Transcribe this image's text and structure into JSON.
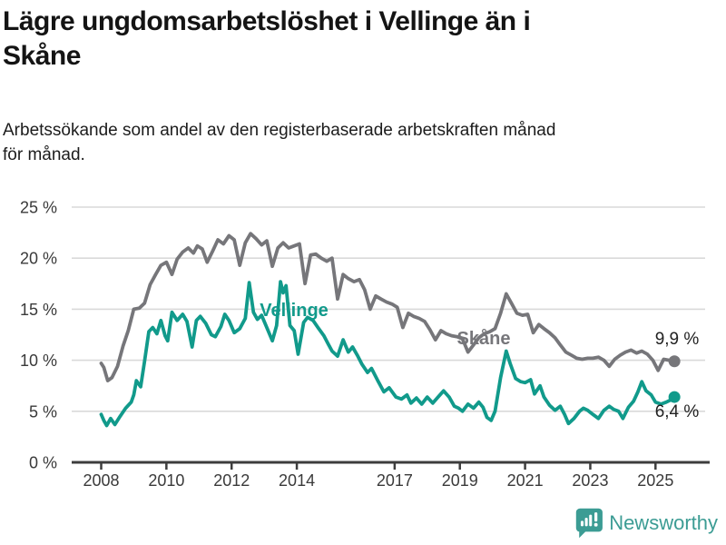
{
  "header": {
    "title_line1": "Lägre ungdomsarbetslöshet i Vellinge än i",
    "title_line2": "Skåne",
    "subtitle_line1": "Arbetssökande som andel av den registerbaserade arbetskraften månad",
    "subtitle_line2": "för månad."
  },
  "chart_data": {
    "type": "line",
    "title": "Lägre ungdomsarbetslöshet i Vellinge än i Skåne",
    "subtitle": "Arbetssökande som andel av den registerbaserade arbetskraften månad för månad.",
    "xlabel": "",
    "ylabel": "",
    "xlim": [
      2007.1,
      2026.6
    ],
    "ylim": [
      0,
      25
    ],
    "grid": "horizontal",
    "legend_position": "inline-labels",
    "y_ticks": [
      {
        "value": 0,
        "label": "0 %"
      },
      {
        "value": 5,
        "label": "5 %"
      },
      {
        "value": 10,
        "label": "10 %"
      },
      {
        "value": 15,
        "label": "15 %"
      },
      {
        "value": 20,
        "label": "20 %"
      },
      {
        "value": 25,
        "label": "25 %"
      }
    ],
    "x_ticks": [
      {
        "value": 2008,
        "label": "2008"
      },
      {
        "value": 2010,
        "label": "2010"
      },
      {
        "value": 2012,
        "label": "2012"
      },
      {
        "value": 2014,
        "label": "2014"
      },
      {
        "value": 2017,
        "label": "2017"
      },
      {
        "value": 2019,
        "label": "2019"
      },
      {
        "value": 2021,
        "label": "2021"
      },
      {
        "value": 2023,
        "label": "2023"
      },
      {
        "value": 2025,
        "label": "2025"
      }
    ],
    "series": [
      {
        "name": "Skåne",
        "color": "#76767a",
        "end_label": "9,9 %",
        "end_value": 9.9,
        "points": [
          [
            2008.0,
            9.7
          ],
          [
            2008.08,
            9.3
          ],
          [
            2008.2,
            8.0
          ],
          [
            2008.33,
            8.3
          ],
          [
            2008.5,
            9.4
          ],
          [
            2008.67,
            11.4
          ],
          [
            2008.83,
            12.9
          ],
          [
            2009.0,
            15.0
          ],
          [
            2009.17,
            15.1
          ],
          [
            2009.33,
            15.6
          ],
          [
            2009.5,
            17.4
          ],
          [
            2009.67,
            18.4
          ],
          [
            2009.83,
            19.3
          ],
          [
            2010.0,
            19.6
          ],
          [
            2010.17,
            18.4
          ],
          [
            2010.33,
            19.9
          ],
          [
            2010.5,
            20.6
          ],
          [
            2010.67,
            21.0
          ],
          [
            2010.83,
            20.5
          ],
          [
            2010.95,
            21.2
          ],
          [
            2011.1,
            20.9
          ],
          [
            2011.25,
            19.6
          ],
          [
            2011.42,
            20.7
          ],
          [
            2011.58,
            21.8
          ],
          [
            2011.75,
            21.4
          ],
          [
            2011.92,
            22.2
          ],
          [
            2012.08,
            21.8
          ],
          [
            2012.25,
            19.3
          ],
          [
            2012.42,
            21.5
          ],
          [
            2012.58,
            22.4
          ],
          [
            2012.75,
            21.9
          ],
          [
            2012.92,
            21.3
          ],
          [
            2013.08,
            21.7
          ],
          [
            2013.25,
            19.2
          ],
          [
            2013.42,
            21.0
          ],
          [
            2013.58,
            21.5
          ],
          [
            2013.75,
            21.0
          ],
          [
            2013.92,
            21.2
          ],
          [
            2014.08,
            21.4
          ],
          [
            2014.25,
            17.5
          ],
          [
            2014.42,
            20.3
          ],
          [
            2014.58,
            20.4
          ],
          [
            2014.75,
            20.0
          ],
          [
            2014.92,
            19.7
          ],
          [
            2015.08,
            20.0
          ],
          [
            2015.25,
            16.0
          ],
          [
            2015.42,
            18.4
          ],
          [
            2015.58,
            18.0
          ],
          [
            2015.75,
            17.7
          ],
          [
            2015.92,
            17.9
          ],
          [
            2016.08,
            16.9
          ],
          [
            2016.25,
            15.0
          ],
          [
            2016.42,
            16.3
          ],
          [
            2016.58,
            16.0
          ],
          [
            2016.75,
            15.7
          ],
          [
            2016.92,
            15.5
          ],
          [
            2017.08,
            15.2
          ],
          [
            2017.25,
            13.2
          ],
          [
            2017.42,
            14.6
          ],
          [
            2017.58,
            14.3
          ],
          [
            2017.75,
            14.1
          ],
          [
            2017.92,
            13.8
          ],
          [
            2018.08,
            13.0
          ],
          [
            2018.25,
            12.0
          ],
          [
            2018.42,
            12.9
          ],
          [
            2018.58,
            12.6
          ],
          [
            2018.75,
            12.4
          ],
          [
            2018.92,
            12.3
          ],
          [
            2019.08,
            12.1
          ],
          [
            2019.25,
            10.8
          ],
          [
            2019.42,
            11.5
          ],
          [
            2019.58,
            12.2
          ],
          [
            2019.75,
            12.6
          ],
          [
            2019.92,
            12.8
          ],
          [
            2020.08,
            13.1
          ],
          [
            2020.25,
            14.6
          ],
          [
            2020.42,
            16.5
          ],
          [
            2020.58,
            15.6
          ],
          [
            2020.75,
            14.6
          ],
          [
            2020.92,
            14.4
          ],
          [
            2021.08,
            14.5
          ],
          [
            2021.25,
            12.7
          ],
          [
            2021.42,
            13.5
          ],
          [
            2021.58,
            13.1
          ],
          [
            2021.75,
            12.7
          ],
          [
            2021.92,
            12.2
          ],
          [
            2022.08,
            11.5
          ],
          [
            2022.25,
            10.8
          ],
          [
            2022.42,
            10.5
          ],
          [
            2022.58,
            10.2
          ],
          [
            2022.75,
            10.1
          ],
          [
            2022.92,
            10.2
          ],
          [
            2023.08,
            10.2
          ],
          [
            2023.25,
            10.3
          ],
          [
            2023.42,
            10.0
          ],
          [
            2023.58,
            9.4
          ],
          [
            2023.75,
            10.1
          ],
          [
            2023.92,
            10.5
          ],
          [
            2024.08,
            10.8
          ],
          [
            2024.25,
            11.0
          ],
          [
            2024.42,
            10.7
          ],
          [
            2024.58,
            10.9
          ],
          [
            2024.75,
            10.6
          ],
          [
            2024.92,
            10.0
          ],
          [
            2025.08,
            9.0
          ],
          [
            2025.25,
            10.1
          ],
          [
            2025.42,
            10.0
          ],
          [
            2025.58,
            9.9
          ]
        ]
      },
      {
        "name": "Vellinge",
        "color": "#119a8b",
        "end_label": "6,4 %",
        "end_value": 6.4,
        "points": [
          [
            2008.0,
            4.7
          ],
          [
            2008.08,
            4.1
          ],
          [
            2008.17,
            3.6
          ],
          [
            2008.29,
            4.3
          ],
          [
            2008.42,
            3.7
          ],
          [
            2008.58,
            4.5
          ],
          [
            2008.75,
            5.3
          ],
          [
            2008.92,
            5.9
          ],
          [
            2009.0,
            6.6
          ],
          [
            2009.08,
            8.0
          ],
          [
            2009.21,
            7.4
          ],
          [
            2009.33,
            9.9
          ],
          [
            2009.46,
            12.8
          ],
          [
            2009.58,
            13.2
          ],
          [
            2009.71,
            12.6
          ],
          [
            2009.83,
            13.9
          ],
          [
            2009.96,
            12.4
          ],
          [
            2010.04,
            11.9
          ],
          [
            2010.17,
            14.7
          ],
          [
            2010.33,
            13.9
          ],
          [
            2010.5,
            14.5
          ],
          [
            2010.63,
            13.8
          ],
          [
            2010.79,
            11.3
          ],
          [
            2010.92,
            13.9
          ],
          [
            2011.04,
            14.3
          ],
          [
            2011.21,
            13.6
          ],
          [
            2011.38,
            12.5
          ],
          [
            2011.5,
            12.3
          ],
          [
            2011.67,
            13.3
          ],
          [
            2011.79,
            14.5
          ],
          [
            2011.92,
            13.9
          ],
          [
            2012.08,
            12.7
          ],
          [
            2012.25,
            13.1
          ],
          [
            2012.42,
            14.1
          ],
          [
            2012.54,
            17.6
          ],
          [
            2012.67,
            14.7
          ],
          [
            2012.79,
            14.0
          ],
          [
            2012.92,
            14.4
          ],
          [
            2013.08,
            13.2
          ],
          [
            2013.25,
            11.9
          ],
          [
            2013.38,
            13.4
          ],
          [
            2013.5,
            17.7
          ],
          [
            2013.58,
            16.6
          ],
          [
            2013.67,
            17.3
          ],
          [
            2013.79,
            13.4
          ],
          [
            2013.92,
            12.9
          ],
          [
            2014.04,
            10.6
          ],
          [
            2014.21,
            13.7
          ],
          [
            2014.33,
            14.2
          ],
          [
            2014.5,
            13.9
          ],
          [
            2014.67,
            13.1
          ],
          [
            2014.83,
            12.4
          ],
          [
            2014.96,
            11.6
          ],
          [
            2015.08,
            10.9
          ],
          [
            2015.25,
            10.4
          ],
          [
            2015.42,
            12.0
          ],
          [
            2015.58,
            10.8
          ],
          [
            2015.71,
            11.3
          ],
          [
            2015.87,
            10.4
          ],
          [
            2016.0,
            9.6
          ],
          [
            2016.17,
            8.8
          ],
          [
            2016.29,
            9.2
          ],
          [
            2016.5,
            7.9
          ],
          [
            2016.67,
            6.9
          ],
          [
            2016.83,
            7.3
          ],
          [
            2017.04,
            6.4
          ],
          [
            2017.21,
            6.2
          ],
          [
            2017.38,
            6.6
          ],
          [
            2017.5,
            5.8
          ],
          [
            2017.67,
            6.3
          ],
          [
            2017.83,
            5.7
          ],
          [
            2018.0,
            6.4
          ],
          [
            2018.17,
            5.8
          ],
          [
            2018.33,
            6.4
          ],
          [
            2018.5,
            7.0
          ],
          [
            2018.67,
            6.4
          ],
          [
            2018.83,
            5.5
          ],
          [
            2018.96,
            5.3
          ],
          [
            2019.08,
            5.0
          ],
          [
            2019.25,
            5.7
          ],
          [
            2019.42,
            5.3
          ],
          [
            2019.58,
            5.9
          ],
          [
            2019.71,
            5.4
          ],
          [
            2019.83,
            4.4
          ],
          [
            2019.96,
            4.1
          ],
          [
            2020.08,
            5.0
          ],
          [
            2020.25,
            8.3
          ],
          [
            2020.42,
            10.9
          ],
          [
            2020.54,
            9.7
          ],
          [
            2020.71,
            8.2
          ],
          [
            2020.87,
            7.9
          ],
          [
            2021.0,
            7.8
          ],
          [
            2021.17,
            8.1
          ],
          [
            2021.29,
            6.7
          ],
          [
            2021.46,
            7.5
          ],
          [
            2021.58,
            6.4
          ],
          [
            2021.75,
            5.6
          ],
          [
            2021.92,
            5.1
          ],
          [
            2022.08,
            5.5
          ],
          [
            2022.21,
            4.7
          ],
          [
            2022.33,
            3.8
          ],
          [
            2022.5,
            4.3
          ],
          [
            2022.67,
            5.0
          ],
          [
            2022.79,
            5.3
          ],
          [
            2022.92,
            5.1
          ],
          [
            2023.08,
            4.7
          ],
          [
            2023.25,
            4.3
          ],
          [
            2023.42,
            5.1
          ],
          [
            2023.58,
            5.5
          ],
          [
            2023.71,
            5.2
          ],
          [
            2023.87,
            5.0
          ],
          [
            2024.0,
            4.3
          ],
          [
            2024.17,
            5.4
          ],
          [
            2024.33,
            6.0
          ],
          [
            2024.46,
            6.9
          ],
          [
            2024.58,
            7.9
          ],
          [
            2024.71,
            7.0
          ],
          [
            2024.87,
            6.6
          ],
          [
            2025.0,
            5.9
          ],
          [
            2025.17,
            5.7
          ],
          [
            2025.33,
            5.9
          ],
          [
            2025.46,
            6.1
          ],
          [
            2025.58,
            6.4
          ]
        ]
      }
    ],
    "annotations": [
      {
        "text": "Vellinge",
        "series": "Vellinge",
        "color": "#119a8b"
      },
      {
        "text": "Skåne",
        "series": "Skåne",
        "color": "#76767a"
      }
    ]
  },
  "branding": {
    "name": "Newsworthy",
    "color": "#3c9c94",
    "icon": "newsworthy-speech-bubble-bar-chart-icon"
  }
}
